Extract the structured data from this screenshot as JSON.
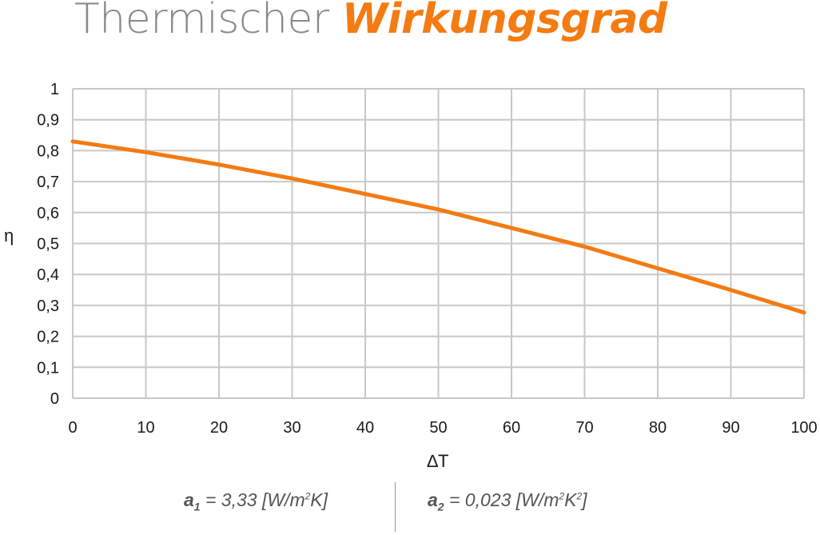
{
  "title": {
    "plain": "Thermischer",
    "highlight": "Wirkungsgrad"
  },
  "colors": {
    "accent": "#f47b12",
    "grid": "#c8c8c8",
    "title_gray": "#8a8a8a"
  },
  "chart_data": {
    "type": "line",
    "xlabel": "∆T",
    "ylabel": "η",
    "xlim": [
      0,
      100
    ],
    "ylim": [
      0,
      1
    ],
    "x_ticks": [
      "0",
      "10",
      "20",
      "30",
      "40",
      "50",
      "60",
      "70",
      "80",
      "90",
      "100"
    ],
    "y_ticks": [
      "0",
      "0,1",
      "0,2",
      "0,3",
      "0,4",
      "0,5",
      "0,6",
      "0,7",
      "0,8",
      "0,9",
      "1"
    ],
    "grid": true,
    "series": [
      {
        "x": [
          0,
          10,
          20,
          30,
          40,
          50,
          60,
          70,
          80,
          90,
          100
        ],
        "y": [
          0.83,
          0.795,
          0.755,
          0.71,
          0.66,
          0.61,
          0.55,
          0.49,
          0.42,
          0.35,
          0.277
        ]
      }
    ]
  },
  "formulas": {
    "a1": {
      "symbol": "a",
      "index": "1",
      "text": " = 3,33 [W/m",
      "exp": "2",
      "tail": "K]"
    },
    "a2": {
      "symbol": "a",
      "index": "2",
      "text": " = 0,023 [W/m",
      "exp": "2",
      "mid": "K",
      "exp2": "2",
      "tail": "]"
    }
  }
}
